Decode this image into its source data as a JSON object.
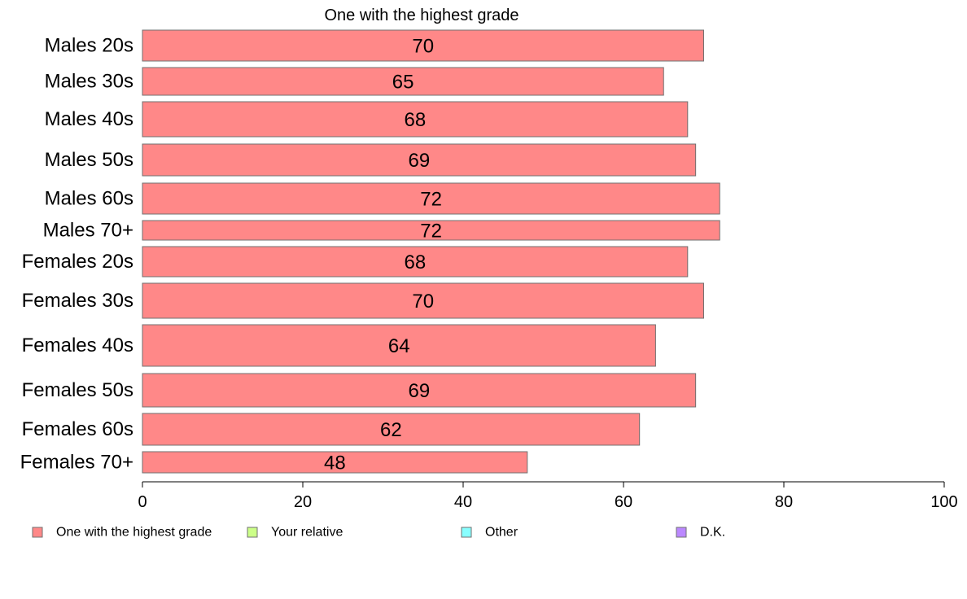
{
  "chart_data": {
    "type": "bar",
    "orientation": "horizontal",
    "title": "One with the highest grade",
    "xlabel": "",
    "ylabel": "",
    "xlim": [
      0,
      100
    ],
    "xticks": [
      0,
      20,
      40,
      60,
      80,
      100
    ],
    "categories": [
      "Males 20s",
      "Males 30s",
      "Males 40s",
      "Males 50s",
      "Males 60s",
      "Males 70+",
      "Females 20s",
      "Females 30s",
      "Females 40s",
      "Females 50s",
      "Females 60s",
      "Females 70+"
    ],
    "series": [
      {
        "name": "One with the highest grade",
        "color": "#ff8888",
        "values": [
          70,
          65,
          68,
          69,
          72,
          72,
          68,
          70,
          64,
          69,
          62,
          48
        ]
      }
    ],
    "data_labels": [
      "70",
      "65",
      "68",
      "69",
      "72",
      "72",
      "68",
      "70",
      "64",
      "69",
      "62",
      "48"
    ],
    "legend": {
      "position": "bottom",
      "items": [
        {
          "label": "One with the highest grade",
          "color": "#ff8888"
        },
        {
          "label": "Your relative",
          "color": "#ccff88"
        },
        {
          "label": "Other",
          "color": "#88ffff"
        },
        {
          "label": "D.K.",
          "color": "#bb88ff"
        }
      ]
    },
    "grid": false
  }
}
